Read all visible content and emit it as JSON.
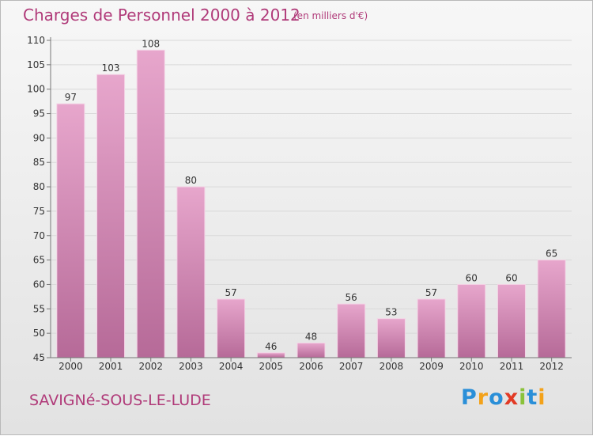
{
  "header": {
    "title": "Charges de Personnel 2000 à 2012",
    "subtitle": "(en milliers d'€)"
  },
  "footer": {
    "commune": "SAVIGNé-SOUS-LE-LUDE",
    "logo": [
      "P",
      "r",
      "o",
      "x",
      "i",
      "t",
      "i"
    ],
    "logo_colors": [
      "#2a8fd8",
      "#f3a21a",
      "#2a8fd8",
      "#e23a25",
      "#8ac23a",
      "#2a8fd8",
      "#f3a21a"
    ]
  },
  "colors": {
    "title": "#b03a79",
    "bar_top": "#e7a6cc",
    "bar_bottom": "#b66a98",
    "axis": "#777777",
    "grid": "#d9d9d9",
    "text": "#333333"
  },
  "chart_data": {
    "type": "bar",
    "title": "Charges de Personnel 2000 à 2012",
    "subtitle": "(en milliers d'€)",
    "categories": [
      "2000",
      "2001",
      "2002",
      "2003",
      "2004",
      "2005",
      "2006",
      "2007",
      "2008",
      "2009",
      "2010",
      "2011",
      "2012"
    ],
    "values": [
      97,
      103,
      108,
      80,
      57,
      46,
      48,
      56,
      53,
      57,
      60,
      60,
      65
    ],
    "ylim": [
      45,
      110
    ],
    "yticks": [
      45,
      50,
      55,
      60,
      65,
      70,
      75,
      80,
      85,
      90,
      95,
      100,
      105,
      110
    ],
    "grid": true,
    "legend": "none"
  }
}
